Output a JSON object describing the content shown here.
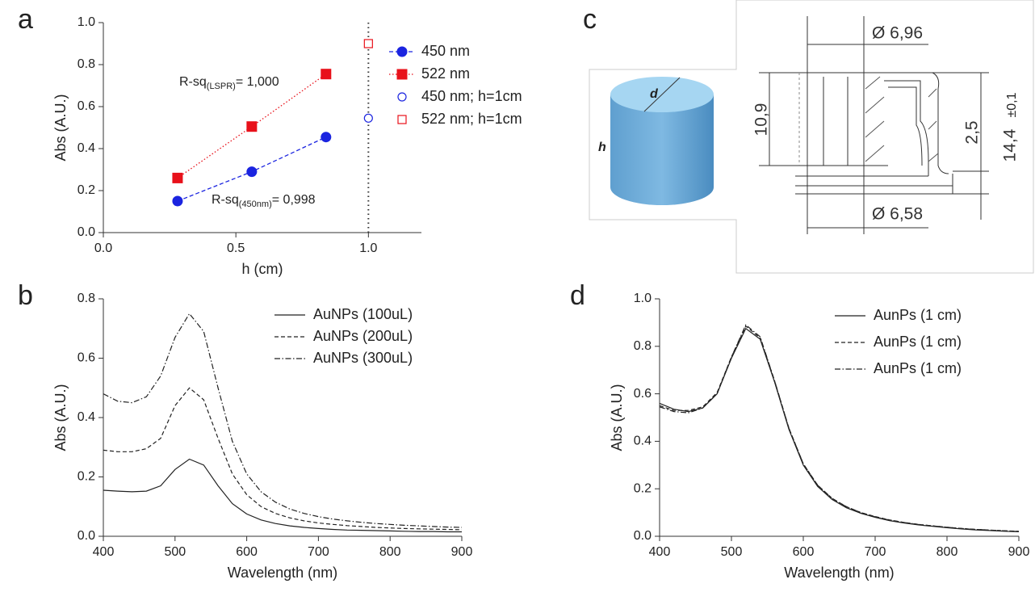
{
  "chart_data": [
    {
      "type": "scatter",
      "panel_label": "a",
      "x_label": "h (cm)",
      "y_label": "Abs (A.U.)",
      "xlim": [
        0,
        1.2
      ],
      "xticks": [
        {
          "value": 0,
          "label": "0.0"
        },
        0.5,
        {
          "value": 1,
          "label": "1.0"
        }
      ],
      "ylim": [
        0,
        1
      ],
      "yticks": [
        {
          "value": 0,
          "label": "0.0"
        },
        0.2,
        0.4,
        0.6,
        0.8,
        {
          "value": 1,
          "label": "1.0"
        }
      ],
      "reference_line_x": 1,
      "series": [
        {
          "name": "450 nm",
          "color": "#1b24e0",
          "marker": "circle",
          "line_style": "dashed",
          "x": [
            0.28,
            0.56,
            0.84
          ],
          "values": [
            0.15,
            0.29,
            0.455
          ]
        },
        {
          "name": "522 nm",
          "color": "#e8111a",
          "marker": "square",
          "line_style": "dotted",
          "x": [
            0.28,
            0.56,
            0.84
          ],
          "values": [
            0.26,
            0.505,
            0.755
          ]
        },
        {
          "name": "450 nm; h=1cm",
          "color": "#1b24e0",
          "marker": "open-circle",
          "x": [
            1
          ],
          "values": [
            0.545
          ]
        },
        {
          "name": "522 nm; h=1cm",
          "color": "#e8111a",
          "marker": "open-square",
          "x": [
            1
          ],
          "values": [
            0.9
          ]
        }
      ],
      "annotations": [
        {
          "text": "R-sq",
          "subscript": "(LSPR)",
          "suffix": "= 1,000"
        },
        {
          "text": "R-sq",
          "subscript": "(450nm)",
          "suffix": "= 0,998"
        }
      ]
    },
    {
      "type": "line",
      "panel_label": "b",
      "x_label": "Wavelength (nm)",
      "y_label": "Abs (A.U.)",
      "xlim": [
        400,
        900
      ],
      "xticks": [
        400,
        500,
        600,
        700,
        800,
        900
      ],
      "ylim": [
        0,
        0.8
      ],
      "yticks": [
        {
          "value": 0,
          "label": "0.0"
        },
        0.2,
        0.4,
        0.6,
        0.8
      ],
      "x": [
        400,
        420,
        440,
        460,
        480,
        500,
        520,
        540,
        560,
        580,
        600,
        620,
        640,
        660,
        680,
        700,
        720,
        740,
        760,
        780,
        800,
        820,
        840,
        860,
        880,
        900
      ],
      "series": [
        {
          "name": "AuNPs (100uL)",
          "color": "#222222",
          "line_style": "solid",
          "values": [
            0.155,
            0.152,
            0.15,
            0.152,
            0.17,
            0.225,
            0.26,
            0.24,
            0.17,
            0.11,
            0.075,
            0.055,
            0.043,
            0.035,
            0.03,
            0.026,
            0.023,
            0.021,
            0.02,
            0.019,
            0.018,
            0.017,
            0.016,
            0.016,
            0.015,
            0.015
          ]
        },
        {
          "name": "AuNPs (200uL)",
          "color": "#222222",
          "line_style": "dashed",
          "values": [
            0.29,
            0.285,
            0.285,
            0.295,
            0.33,
            0.44,
            0.5,
            0.46,
            0.33,
            0.21,
            0.14,
            0.1,
            0.077,
            0.062,
            0.052,
            0.045,
            0.04,
            0.036,
            0.033,
            0.03,
            0.028,
            0.026,
            0.025,
            0.024,
            0.023,
            0.022
          ]
        },
        {
          "name": "AuNPs (300uL)",
          "color": "#222222",
          "line_style": "dashdot",
          "values": [
            0.48,
            0.455,
            0.45,
            0.47,
            0.54,
            0.67,
            0.75,
            0.69,
            0.5,
            0.32,
            0.21,
            0.15,
            0.115,
            0.092,
            0.077,
            0.066,
            0.058,
            0.052,
            0.047,
            0.043,
            0.04,
            0.037,
            0.035,
            0.033,
            0.031,
            0.03
          ]
        }
      ]
    },
    {
      "type": "line",
      "panel_label": "d",
      "x_label": "Wavelength (nm)",
      "y_label": "Abs (A.U.)",
      "xlim": [
        400,
        900
      ],
      "xticks": [
        400,
        500,
        600,
        700,
        800,
        900
      ],
      "ylim": [
        0,
        1
      ],
      "yticks": [
        {
          "value": 0,
          "label": "0.0"
        },
        0.2,
        0.4,
        0.6,
        0.8,
        {
          "value": 1,
          "label": "1.0"
        }
      ],
      "x": [
        400,
        420,
        440,
        460,
        480,
        500,
        520,
        540,
        560,
        580,
        600,
        620,
        640,
        660,
        680,
        700,
        720,
        740,
        760,
        780,
        800,
        820,
        840,
        860,
        880,
        900
      ],
      "series": [
        {
          "name": "AunPs (1 cm)",
          "color": "#222222",
          "line_style": "solid",
          "values": [
            0.56,
            0.535,
            0.525,
            0.54,
            0.6,
            0.75,
            0.875,
            0.83,
            0.65,
            0.45,
            0.3,
            0.21,
            0.155,
            0.12,
            0.097,
            0.08,
            0.066,
            0.056,
            0.048,
            0.042,
            0.036,
            0.031,
            0.027,
            0.024,
            0.021,
            0.019
          ]
        },
        {
          "name": "AunPs (1 cm)",
          "color": "#222222",
          "line_style": "dashed",
          "values": [
            0.55,
            0.53,
            0.53,
            0.545,
            0.605,
            0.755,
            0.885,
            0.835,
            0.655,
            0.455,
            0.305,
            0.215,
            0.16,
            0.125,
            0.1,
            0.083,
            0.069,
            0.058,
            0.05,
            0.044,
            0.038,
            0.033,
            0.029,
            0.026,
            0.023,
            0.021
          ]
        },
        {
          "name": "AunPs (1 cm)",
          "color": "#222222",
          "line_style": "dashdot",
          "values": [
            0.545,
            0.525,
            0.52,
            0.54,
            0.6,
            0.755,
            0.89,
            0.84,
            0.655,
            0.455,
            0.305,
            0.215,
            0.16,
            0.124,
            0.1,
            0.082,
            0.068,
            0.058,
            0.05,
            0.044,
            0.038,
            0.033,
            0.029,
            0.026,
            0.023,
            0.02
          ]
        }
      ]
    }
  ],
  "figure_c": {
    "panel_label": "c",
    "cylinder_labels": [
      "d",
      "h"
    ],
    "dimensions": [
      "Ø 6,96",
      "10,9",
      "2,5",
      "14,4",
      "±0,1",
      "Ø 6,58"
    ]
  }
}
